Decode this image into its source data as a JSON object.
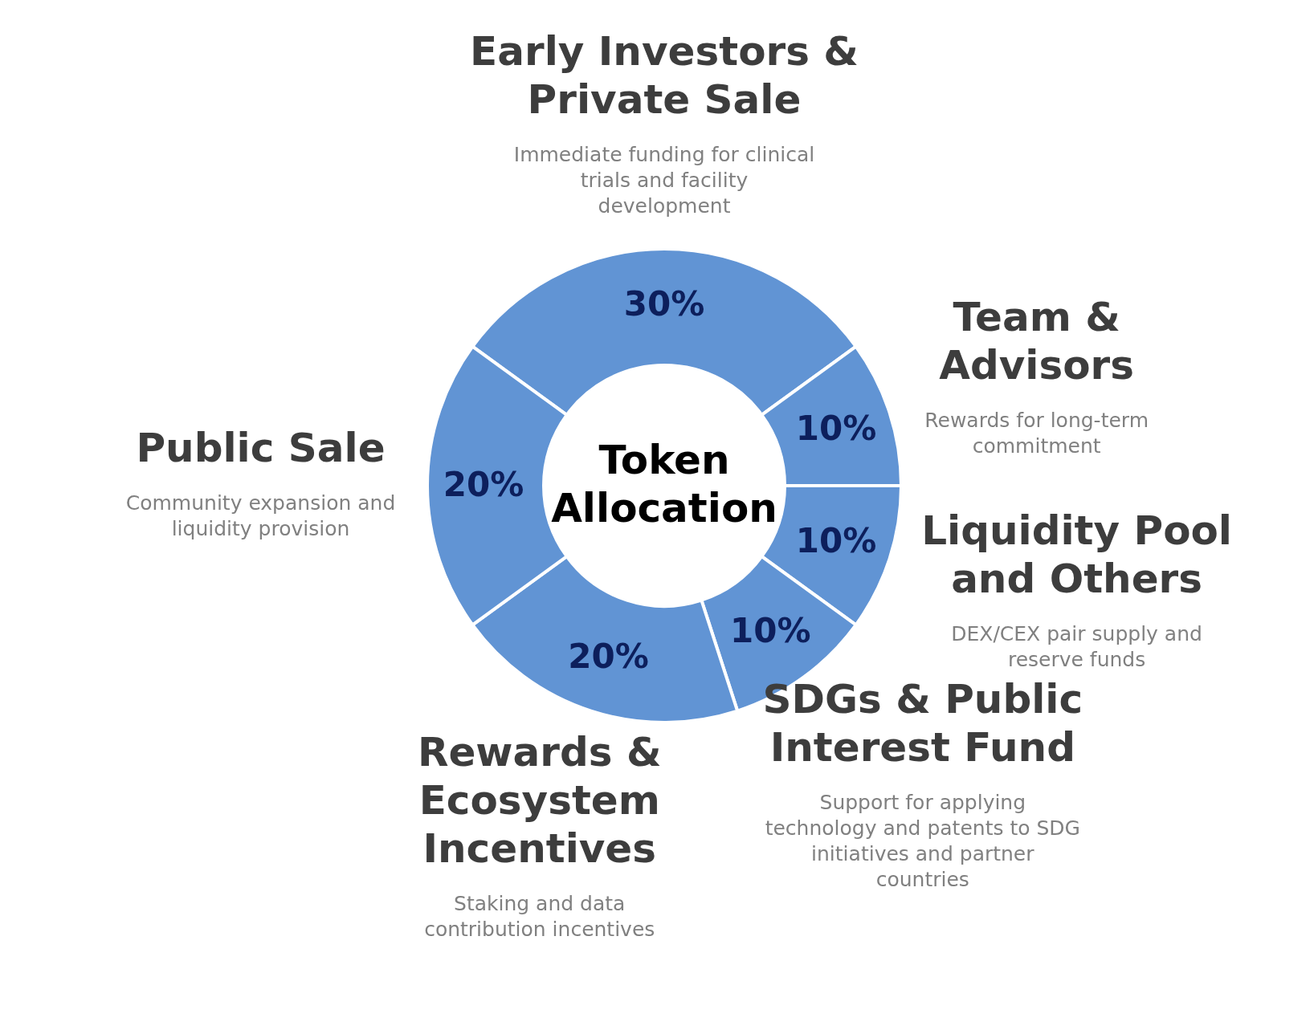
{
  "chart_data": {
    "type": "donut",
    "title": "Token Allocation",
    "categories": [
      "Early Investors & Private Sale",
      "Team & Advisors",
      "Liquidity Pool and Others",
      "SDGs & Public Interest Fund",
      "Rewards & Ecosystem Incentives",
      "Public Sale"
    ],
    "values": [
      30,
      10,
      10,
      10,
      20,
      20
    ],
    "value_labels": [
      "30%",
      "10%",
      "10%",
      "10%",
      "20%",
      "20%"
    ],
    "colors": [
      "#6194d4",
      "#6194d4",
      "#6194d4",
      "#6194d4",
      "#6194d4",
      "#6194d4"
    ],
    "annotations": [
      "Immediate funding for clinical trials and facility development",
      "Rewards for long-term commitment",
      "DEX/CEX pair supply and reserve funds",
      "Support for applying technology and patents to SDG initiatives and partner countries",
      "Staking and data contribution incentives",
      "Community expansion and liquidity provision"
    ]
  }
}
